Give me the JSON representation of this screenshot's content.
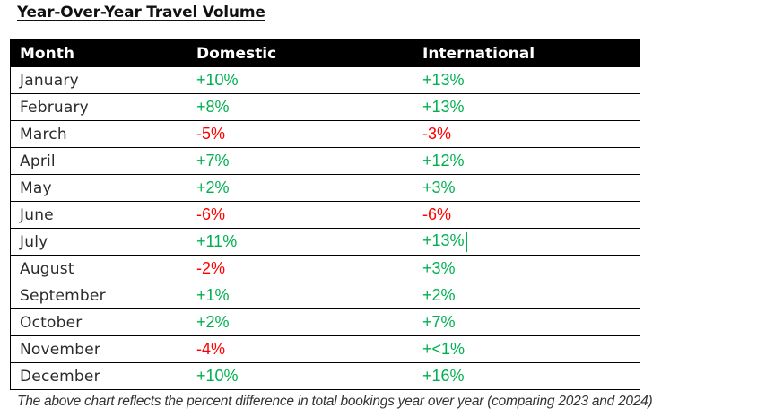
{
  "document": {
    "title": "Year-Over-Year Travel Volume",
    "caption": "The above chart reflects the percent difference in total bookings year over year (comparing 2023 and 2024)"
  },
  "colors": {
    "positive": "#00b050",
    "negative": "#ff0000",
    "header_bg": "#000000",
    "header_text": "#ffffff"
  },
  "table": {
    "headers": [
      "Month",
      "Domestic",
      "International"
    ],
    "rows": [
      {
        "month": "January",
        "domestic": "+10%",
        "international": "+13%"
      },
      {
        "month": "February",
        "domestic": "+8%",
        "international": "+13%"
      },
      {
        "month": "March",
        "domestic": "-5%",
        "international": "-3%"
      },
      {
        "month": "April",
        "domestic": "+7%",
        "international": "+12%"
      },
      {
        "month": "May",
        "domestic": "+2%",
        "international": "+3%"
      },
      {
        "month": "June",
        "domestic": "-6%",
        "international": "-6%"
      },
      {
        "month": "July",
        "domestic": "+11%",
        "international": "+13%"
      },
      {
        "month": "August",
        "domestic": "-2%",
        "international": "+3%"
      },
      {
        "month": "September",
        "domestic": "+1%",
        "international": "+2%"
      },
      {
        "month": "October",
        "domestic": "+2%",
        "international": "+7%"
      },
      {
        "month": "November",
        "domestic": "-4%",
        "international": "+<1%"
      },
      {
        "month": "December",
        "domestic": "+10%",
        "international": "+16%"
      }
    ]
  },
  "editor": {
    "cursor_row": 6,
    "cursor_column": "international"
  }
}
